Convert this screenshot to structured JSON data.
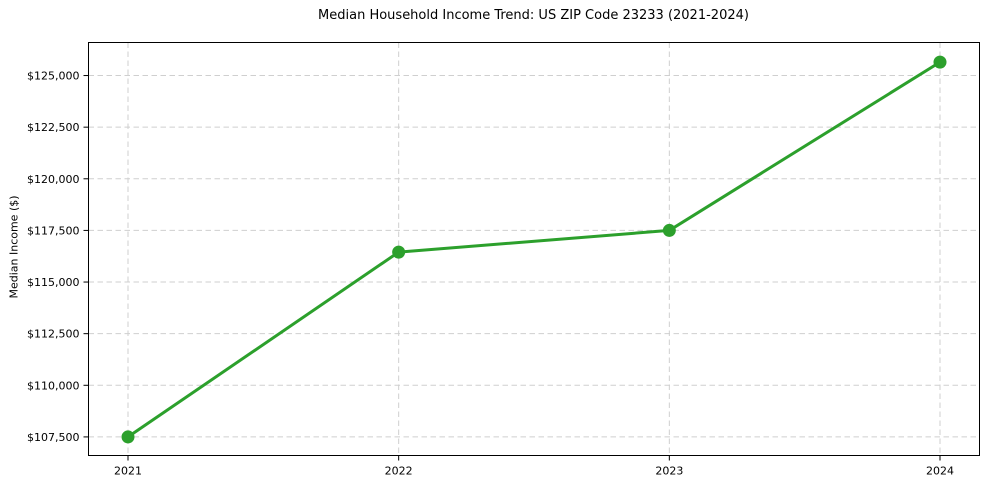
{
  "chart_data": {
    "type": "line",
    "title": "Median Household Income Trend: US ZIP Code 23233 (2021-2024)",
    "ylabel": "Median Income ($)",
    "categories": [
      "2021",
      "2022",
      "2023",
      "2024"
    ],
    "values": [
      107500,
      116450,
      117500,
      125650
    ],
    "y_ticks": [
      107500,
      110000,
      112500,
      115000,
      117500,
      120000,
      122500,
      125000
    ],
    "y_tick_labels": [
      "$107,500",
      "$110,000",
      "$112,500",
      "$115,000",
      "$117,500",
      "$120,000",
      "$122,500",
      "$125,000"
    ],
    "ylim": [
      106600,
      126600
    ],
    "grid": true,
    "grid_style": "dashed",
    "legend_position": "none",
    "colors": {
      "line": "#2ca02c",
      "marker": "#2ca02c",
      "grid": "#cfcfcf",
      "axis": "#000000",
      "text": "#000000",
      "background": "#ffffff"
    }
  }
}
